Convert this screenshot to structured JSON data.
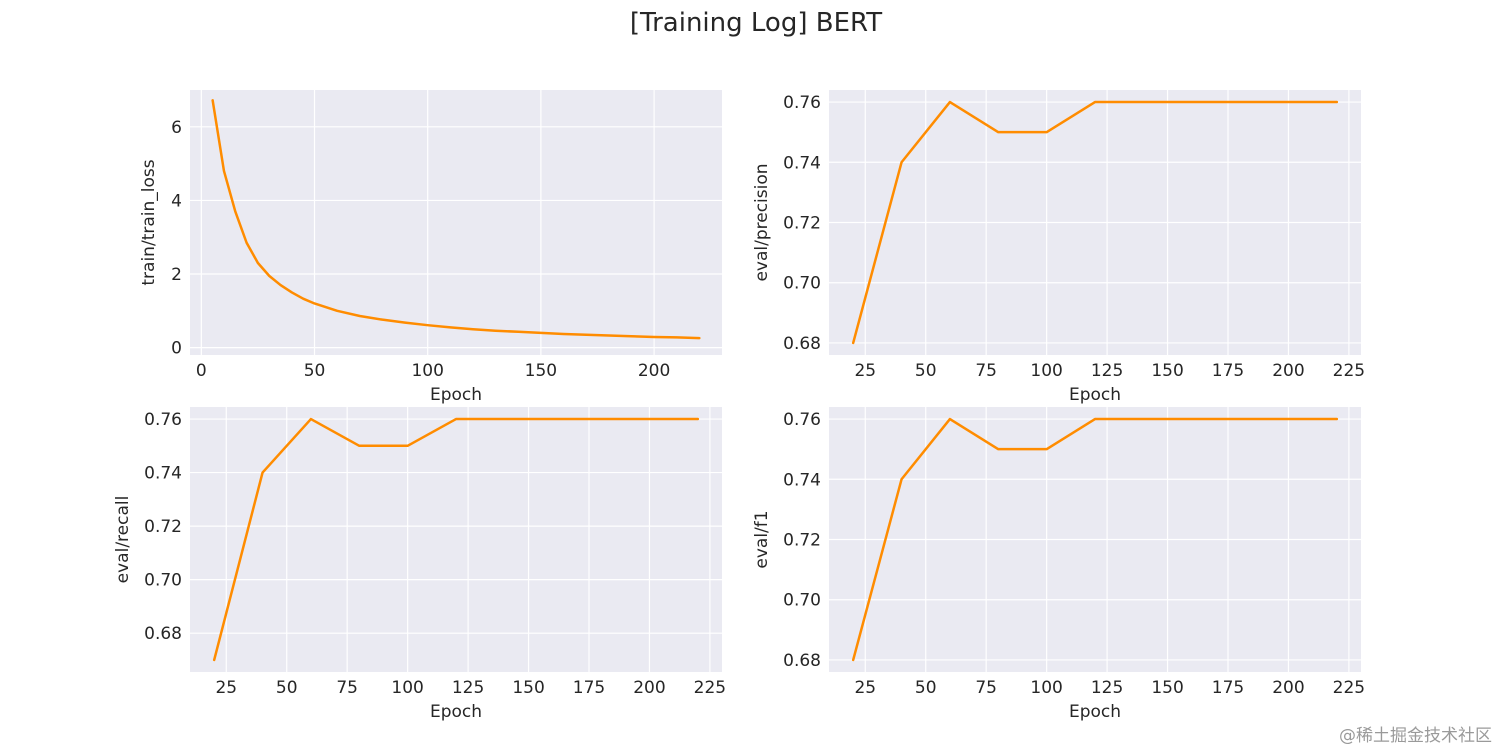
{
  "title": "[Training Log] BERT",
  "watermark": "@稀土掘金技术社区",
  "colors": {
    "line": "#ff8c00",
    "panel_bg": "#eaeaf2",
    "grid": "#ffffff",
    "text": "#262626"
  },
  "chart_data": [
    {
      "type": "line",
      "xlabel": "Epoch",
      "ylabel": "train/train_loss",
      "xlim": [
        -5,
        230
      ],
      "ylim": [
        -0.2,
        7.0
      ],
      "xticks": [
        0,
        50,
        100,
        150,
        200
      ],
      "yticks": [
        0,
        2,
        4,
        6
      ],
      "ytick_decimals": 0,
      "grid": true,
      "x": [
        5,
        10,
        15,
        20,
        25,
        30,
        35,
        40,
        45,
        50,
        60,
        70,
        80,
        90,
        100,
        110,
        120,
        130,
        140,
        150,
        160,
        170,
        180,
        190,
        200,
        210,
        220
      ],
      "y": [
        6.72,
        4.8,
        3.7,
        2.85,
        2.3,
        1.95,
        1.7,
        1.5,
        1.33,
        1.2,
        1.0,
        0.86,
        0.76,
        0.68,
        0.61,
        0.55,
        0.5,
        0.46,
        0.43,
        0.4,
        0.37,
        0.35,
        0.33,
        0.31,
        0.29,
        0.28,
        0.26
      ]
    },
    {
      "type": "line",
      "xlabel": "Epoch",
      "ylabel": "eval/precision",
      "xlim": [
        10,
        230
      ],
      "ylim": [
        0.676,
        0.764
      ],
      "xticks": [
        25,
        50,
        75,
        100,
        125,
        150,
        175,
        200,
        225
      ],
      "yticks": [
        0.68,
        0.7,
        0.72,
        0.74,
        0.76
      ],
      "ytick_decimals": 2,
      "grid": true,
      "x": [
        20,
        40,
        60,
        80,
        100,
        120,
        140,
        160,
        180,
        200,
        220
      ],
      "y": [
        0.68,
        0.74,
        0.76,
        0.75,
        0.75,
        0.76,
        0.76,
        0.76,
        0.76,
        0.76,
        0.76
      ]
    },
    {
      "type": "line",
      "xlabel": "Epoch",
      "ylabel": "eval/recall",
      "xlim": [
        10,
        230
      ],
      "ylim": [
        0.6655,
        0.7645
      ],
      "xticks": [
        25,
        50,
        75,
        100,
        125,
        150,
        175,
        200,
        225
      ],
      "yticks": [
        0.68,
        0.7,
        0.72,
        0.74,
        0.76
      ],
      "ytick_decimals": 2,
      "grid": true,
      "x": [
        20,
        40,
        60,
        80,
        100,
        120,
        140,
        160,
        180,
        200,
        220
      ],
      "y": [
        0.67,
        0.74,
        0.76,
        0.75,
        0.75,
        0.76,
        0.76,
        0.76,
        0.76,
        0.76,
        0.76
      ]
    },
    {
      "type": "line",
      "xlabel": "Epoch",
      "ylabel": "eval/f1",
      "xlim": [
        10,
        230
      ],
      "ylim": [
        0.676,
        0.764
      ],
      "xticks": [
        25,
        50,
        75,
        100,
        125,
        150,
        175,
        200,
        225
      ],
      "yticks": [
        0.68,
        0.7,
        0.72,
        0.74,
        0.76
      ],
      "ytick_decimals": 2,
      "grid": true,
      "x": [
        20,
        40,
        60,
        80,
        100,
        120,
        140,
        160,
        180,
        200,
        220
      ],
      "y": [
        0.68,
        0.74,
        0.76,
        0.75,
        0.75,
        0.76,
        0.76,
        0.76,
        0.76,
        0.76,
        0.76
      ]
    }
  ]
}
